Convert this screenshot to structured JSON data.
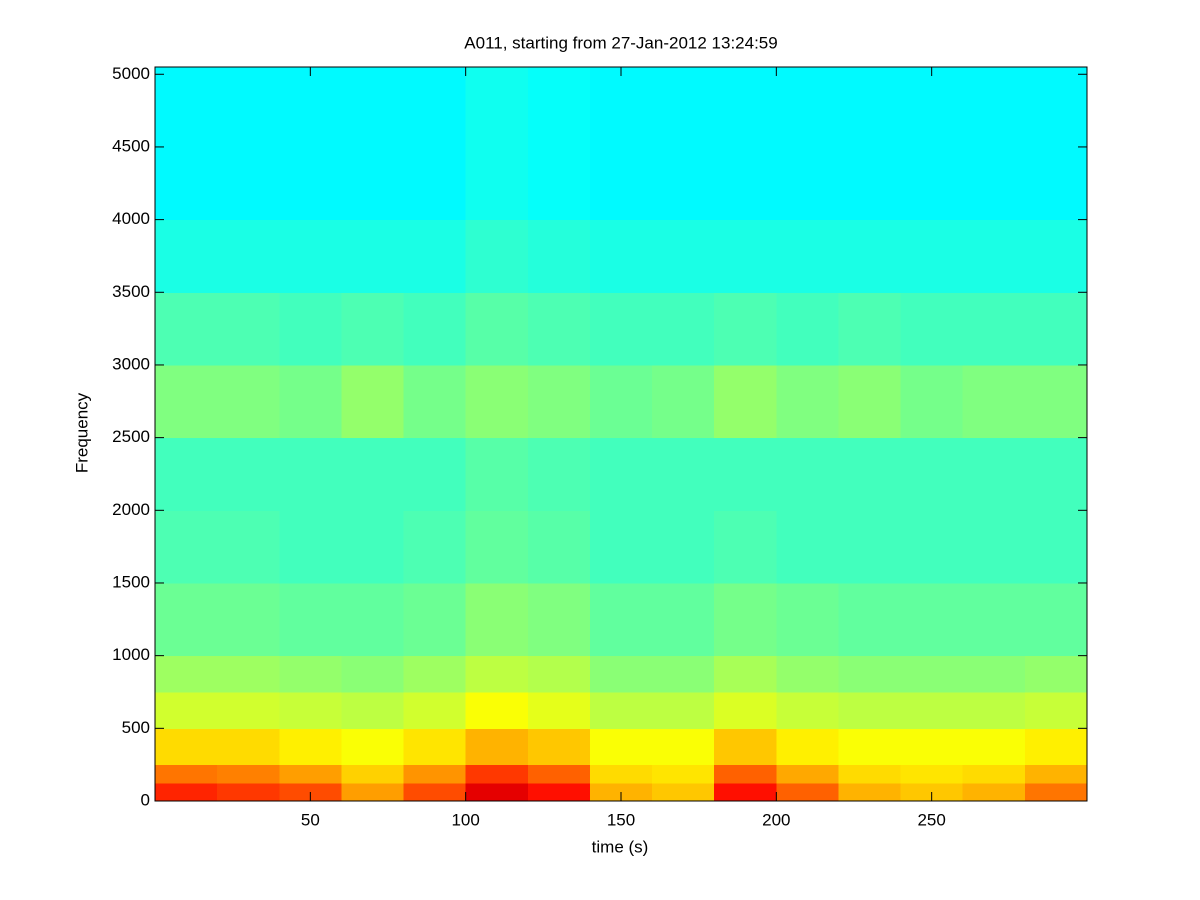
{
  "chart_data": {
    "type": "spectrogram",
    "title": "A011, starting from 27-Jan-2012 13:24:59",
    "x_label": "time (s)",
    "y_label": "Frequency",
    "xlim": [
      0,
      300
    ],
    "ylim": [
      0,
      5050
    ],
    "xticks": [
      50,
      100,
      150,
      200,
      250
    ],
    "yticks": [
      0,
      500,
      1000,
      1500,
      2000,
      2500,
      3000,
      3500,
      4000,
      4500,
      5000
    ],
    "colormap": "jet",
    "clim": [
      0,
      100
    ],
    "time_bins": [
      0,
      20,
      40,
      60,
      80,
      100,
      120,
      140,
      160,
      180,
      200,
      220,
      240,
      260,
      280,
      300
    ],
    "freq_bins": [
      0,
      125,
      250,
      500,
      750,
      1000,
      1500,
      2000,
      2500,
      3000,
      3500,
      4000,
      5050
    ],
    "levels": [
      [
        84,
        82,
        80,
        72,
        80,
        90,
        86,
        70,
        68,
        86,
        78,
        70,
        68,
        70,
        76
      ],
      [
        76,
        75,
        72,
        67,
        73,
        82,
        78,
        66,
        65,
        78,
        71,
        66,
        65,
        66,
        70
      ],
      [
        66,
        66,
        64,
        62,
        65,
        70,
        68,
        62,
        62,
        68,
        64,
        62,
        62,
        62,
        64
      ],
      [
        58,
        58,
        57,
        56,
        58,
        62,
        60,
        56,
        56,
        59,
        57,
        56,
        56,
        56,
        57
      ],
      [
        53,
        53,
        52,
        51,
        53,
        56,
        55,
        51,
        51,
        54,
        52,
        51,
        51,
        51,
        52
      ],
      [
        48,
        48,
        47,
        47,
        48,
        51,
        50,
        47,
        47,
        49,
        48,
        47,
        47,
        47,
        47
      ],
      [
        45,
        45,
        44,
        44,
        45,
        47,
        46,
        44,
        44,
        45,
        44,
        44,
        44,
        44,
        44
      ],
      [
        44,
        44,
        44,
        44,
        44,
        46,
        45,
        44,
        44,
        44,
        44,
        44,
        44,
        44,
        44
      ],
      [
        50,
        50,
        49,
        52,
        49,
        51,
        50,
        48,
        49,
        52,
        50,
        51,
        49,
        50,
        50
      ],
      [
        45,
        45,
        44,
        45,
        44,
        46,
        45,
        44,
        44,
        45,
        44,
        45,
        44,
        44,
        44
      ],
      [
        40,
        40,
        40,
        40,
        40,
        42,
        41,
        40,
        40,
        40,
        40,
        40,
        40,
        40,
        40
      ],
      [
        37,
        37,
        37,
        37,
        37,
        39,
        38,
        37,
        37,
        37,
        37,
        37,
        37,
        37,
        37
      ]
    ]
  }
}
